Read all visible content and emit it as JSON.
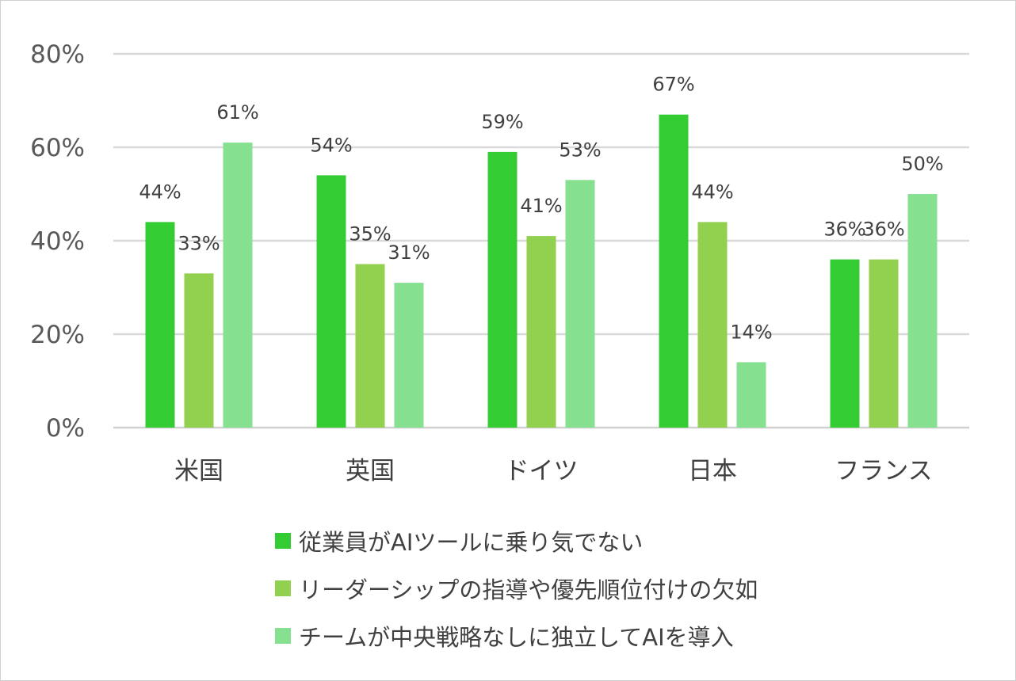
{
  "chart_data": {
    "type": "bar",
    "categories": [
      "米国",
      "英国",
      "ドイツ",
      "日本",
      "フランス"
    ],
    "series": [
      {
        "name": "従業員がAIツールに乗り気でない",
        "color": "#33cc33",
        "values": [
          44,
          54,
          59,
          67,
          36
        ],
        "labels": [
          "44%",
          "54%",
          "59%",
          "67%",
          "36%"
        ]
      },
      {
        "name": "リーダーシップの指導や優先順位付けの欠如",
        "color": "#92d050",
        "values": [
          33,
          35,
          41,
          44,
          36
        ],
        "labels": [
          "33%",
          "35%",
          "41%",
          "44%",
          "36%"
        ]
      },
      {
        "name": "チームが中央戦略なしに独立してAIを導入",
        "color": "#85e090",
        "values": [
          61,
          31,
          53,
          14,
          50
        ],
        "labels": [
          "61%",
          "31%",
          "53%",
          "14%",
          "50%"
        ]
      }
    ],
    "ylim": [
      0,
      80
    ],
    "yticks": [
      0,
      20,
      40,
      60,
      80
    ],
    "ytick_labels": [
      "0%",
      "20%",
      "40%",
      "60%",
      "80%"
    ],
    "grid": true,
    "legend_position": "bottom",
    "title": "",
    "xlabel": "",
    "ylabel": ""
  }
}
